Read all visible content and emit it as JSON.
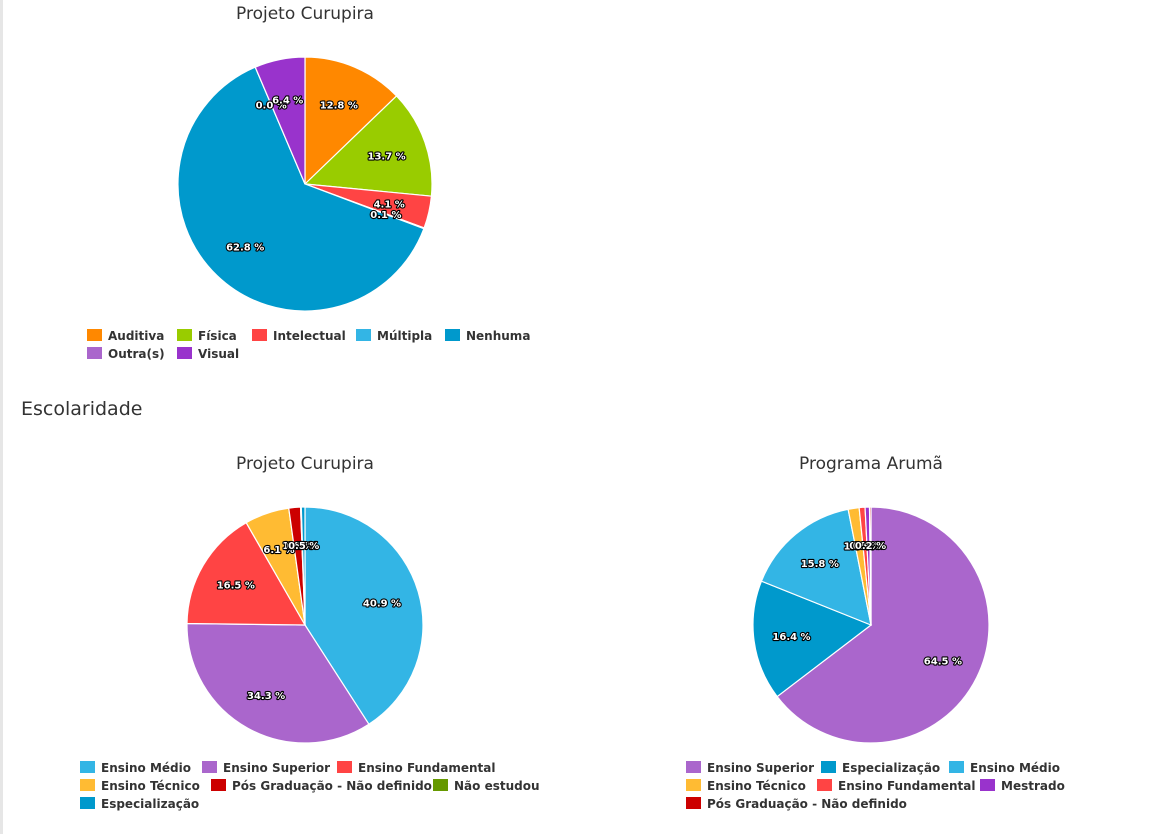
{
  "section_heading": "Escolaridade",
  "chart_data": [
    {
      "type": "pie",
      "title": "Projeto Curupira",
      "slices": [
        {
          "name": "Auditiva",
          "value": 12.8,
          "label": "12.8 %",
          "color": "#ff8800"
        },
        {
          "name": "Física",
          "value": 13.7,
          "label": "13.7 %",
          "color": "#99cc00"
        },
        {
          "name": "Intelectual",
          "value": 4.1,
          "label": "4.1 %",
          "color": "#ff4444"
        },
        {
          "name": "Múltipla",
          "value": 0.1,
          "label": "0.1 %",
          "color": "#33b5e5"
        },
        {
          "name": "Nenhuma",
          "value": 62.8,
          "label": "62.8 %",
          "color": "#0099cc"
        },
        {
          "name": "Outra(s)",
          "value": 0.0,
          "label": "0.0 %",
          "color": "#aa66cc"
        },
        {
          "name": "Visual",
          "value": 6.4,
          "label": "6.4 %",
          "color": "#9933cc"
        }
      ]
    },
    {
      "type": "pie",
      "title": "Projeto Curupira",
      "slices": [
        {
          "name": "Ensino Médio",
          "value": 40.9,
          "label": "40.9 %",
          "color": "#33b5e5"
        },
        {
          "name": "Ensino Superior",
          "value": 34.3,
          "label": "34.3 %",
          "color": "#aa66cc"
        },
        {
          "name": "Ensino Fundamental",
          "value": 16.5,
          "label": "16.5 %",
          "color": "#ff4444"
        },
        {
          "name": "Ensino Técnico",
          "value": 6.1,
          "label": "6.1 %",
          "color": "#ffbb33"
        },
        {
          "name": "Pós Graduação - Não definido",
          "value": 1.6,
          "label": "1.6 %",
          "color": "#cc0000"
        },
        {
          "name": "Não estudou",
          "value": 0.1,
          "label": "0.1 %",
          "color": "#669900"
        },
        {
          "name": "Especialização",
          "value": 0.5,
          "label": "0.5 %",
          "color": "#0099cc"
        }
      ]
    },
    {
      "type": "pie",
      "title": "Programa Arumã",
      "slices": [
        {
          "name": "Ensino Superior",
          "value": 64.5,
          "label": "64.5 %",
          "color": "#aa66cc"
        },
        {
          "name": "Especialização",
          "value": 16.4,
          "label": "16.4 %",
          "color": "#0099cc"
        },
        {
          "name": "Ensino Médio",
          "value": 15.8,
          "label": "15.8 %",
          "color": "#33b5e5"
        },
        {
          "name": "Ensino Técnico",
          "value": 1.5,
          "label": "1.5 %",
          "color": "#ffbb33"
        },
        {
          "name": "Ensino Fundamental",
          "value": 0.8,
          "label": "0.8 %",
          "color": "#ff4444"
        },
        {
          "name": "Mestrado",
          "value": 0.6,
          "label": "0.6 %",
          "color": "#9933cc"
        },
        {
          "name": "Pós Graduação - Não definido",
          "value": 0.2,
          "label": "0.2 %",
          "color": "#cc0000"
        }
      ]
    }
  ]
}
